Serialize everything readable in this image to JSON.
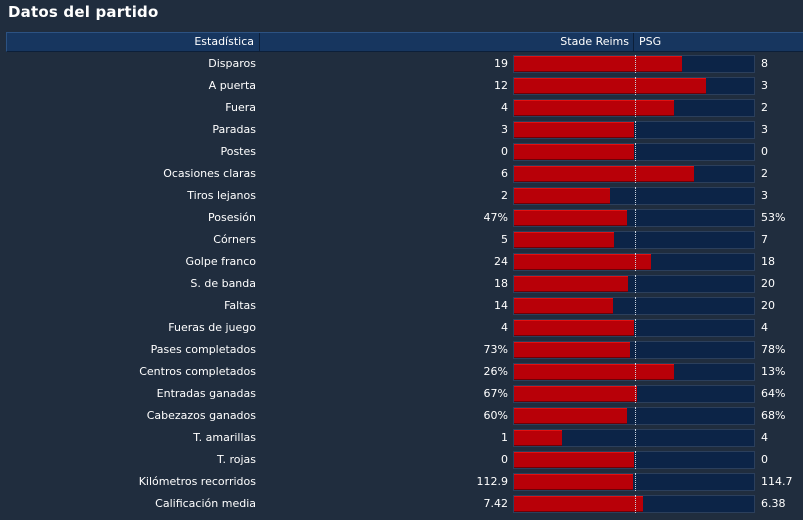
{
  "title": "Datos del partido",
  "header": {
    "stat": "Estadística",
    "home": "Stade Reims",
    "away": "PSG"
  },
  "colors": {
    "home": "#b80008",
    "away_bg": "#0c2447",
    "header": "#17365f",
    "page": "#202d3e"
  },
  "rows": [
    {
      "label": "Disparos",
      "home": "19",
      "away": "8",
      "home_share": 0.7
    },
    {
      "label": "A puerta",
      "home": "12",
      "away": "3",
      "home_share": 0.8
    },
    {
      "label": "Fuera",
      "home": "4",
      "away": "2",
      "home_share": 0.667
    },
    {
      "label": "Paradas",
      "home": "3",
      "away": "3",
      "home_share": 0.5
    },
    {
      "label": "Postes",
      "home": "0",
      "away": "0",
      "home_share": 0.5
    },
    {
      "label": "Ocasiones claras",
      "home": "6",
      "away": "2",
      "home_share": 0.75
    },
    {
      "label": "Tiros lejanos",
      "home": "2",
      "away": "3",
      "home_share": 0.4
    },
    {
      "label": "Posesión",
      "home": "47%",
      "away": "53%",
      "home_share": 0.47
    },
    {
      "label": "Córners",
      "home": "5",
      "away": "7",
      "home_share": 0.417
    },
    {
      "label": "Golpe franco",
      "home": "24",
      "away": "18",
      "home_share": 0.571
    },
    {
      "label": "S. de banda",
      "home": "18",
      "away": "20",
      "home_share": 0.474
    },
    {
      "label": "Faltas",
      "home": "14",
      "away": "20",
      "home_share": 0.412
    },
    {
      "label": "Fueras de juego",
      "home": "4",
      "away": "4",
      "home_share": 0.5
    },
    {
      "label": "Pases completados",
      "home": "73%",
      "away": "78%",
      "home_share": 0.483
    },
    {
      "label": "Centros completados",
      "home": "26%",
      "away": "13%",
      "home_share": 0.667
    },
    {
      "label": "Entradas ganadas",
      "home": "67%",
      "away": "64%",
      "home_share": 0.511
    },
    {
      "label": "Cabezazos ganados",
      "home": "60%",
      "away": "68%",
      "home_share": 0.469
    },
    {
      "label": "T. amarillas",
      "home": "1",
      "away": "4",
      "home_share": 0.2
    },
    {
      "label": "T. rojas",
      "home": "0",
      "away": "0",
      "home_share": 0.5
    },
    {
      "label": "Kilómetros recorridos",
      "home": "112.9",
      "away": "114.7",
      "home_share": 0.496
    },
    {
      "label": "Calificación media",
      "home": "7.42",
      "away": "6.38",
      "home_share": 0.538
    }
  ]
}
